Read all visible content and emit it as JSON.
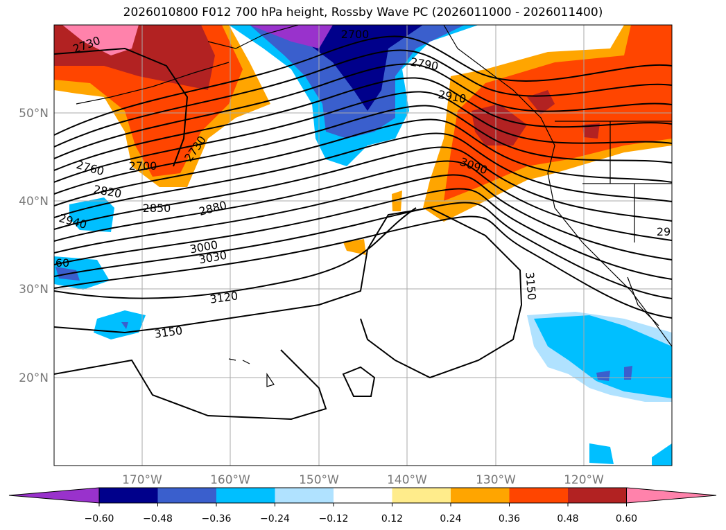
{
  "title": "2026010800 F012 700 hPa height, Rossby Wave PC (2026011000 - 2026011400)",
  "lon_ticks": [
    "170°W",
    "160°W",
    "150°W",
    "140°W",
    "130°W",
    "120°W"
  ],
  "lat_ticks": [
    "50°N",
    "40°N",
    "30°N",
    "20°N"
  ],
  "colorbar": {
    "colors": [
      "#9932CC",
      "#00008B",
      "#3A5FCD",
      "#00BFFF",
      "#B0E2FF",
      "#FFFFFF",
      "#FFEC8B",
      "#FFA500",
      "#FF4500",
      "#B22222",
      "#FF82AB"
    ],
    "labels": [
      "−0.60",
      "−0.48",
      "−0.36",
      "−0.24",
      "−0.12",
      "0.12",
      "0.24",
      "0.36",
      "0.48",
      "0.60"
    ]
  },
  "contour_labels": [
    "2730",
    "2700",
    "2790",
    "2910",
    "2760",
    "2700",
    "2730",
    "2820",
    "2850",
    "2880",
    "2940",
    "3090",
    "3000",
    "3030",
    "3120",
    "3150",
    "3150",
    "60",
    "29"
  ]
}
